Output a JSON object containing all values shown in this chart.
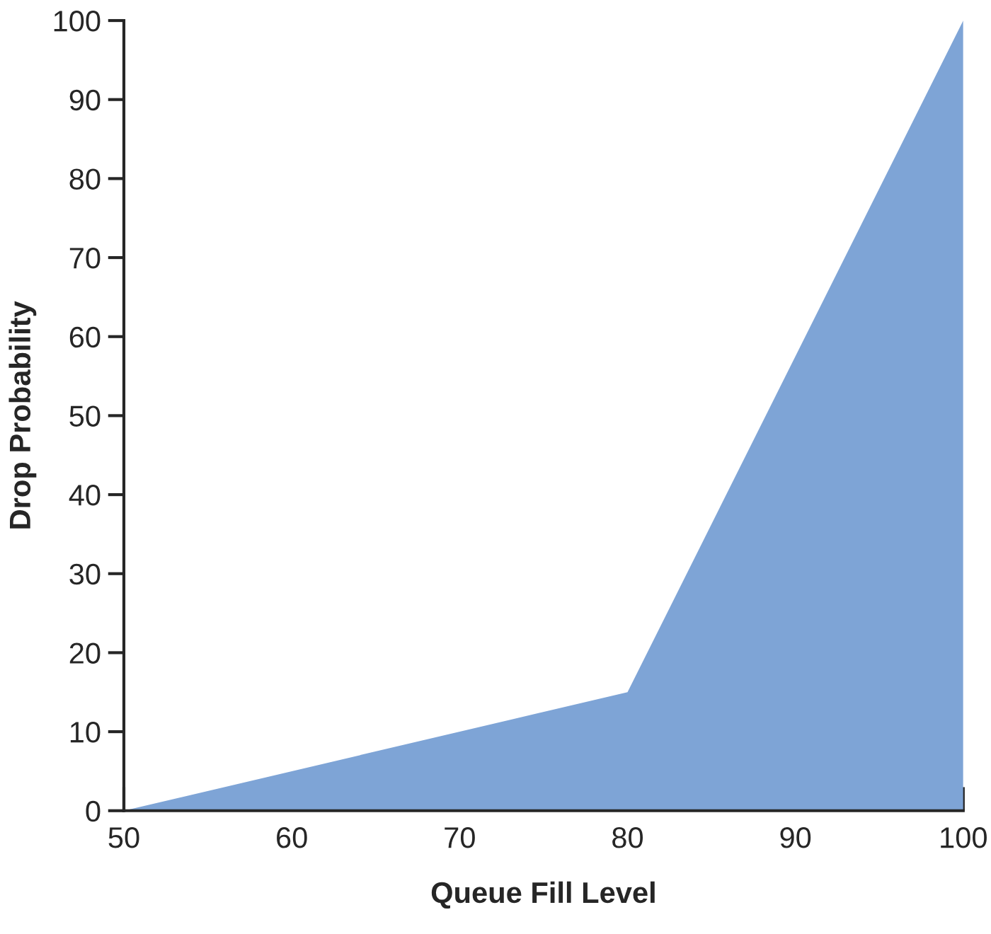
{
  "chart_data": {
    "type": "area",
    "xlabel": "Queue Fill Level",
    "ylabel": "Drop Probability",
    "x": [
      50,
      80,
      100
    ],
    "series": [
      {
        "color": "#7ea4d6",
        "values": [
          0,
          15,
          100
        ]
      }
    ],
    "xlim": [
      50,
      100
    ],
    "xticks": [
      50,
      60,
      70,
      80,
      90,
      100
    ],
    "ylim": [
      0,
      100
    ],
    "yticks": [
      0,
      10,
      20,
      30,
      40,
      50,
      60,
      70,
      80,
      90,
      100
    ],
    "grid": false,
    "legend": false
  }
}
